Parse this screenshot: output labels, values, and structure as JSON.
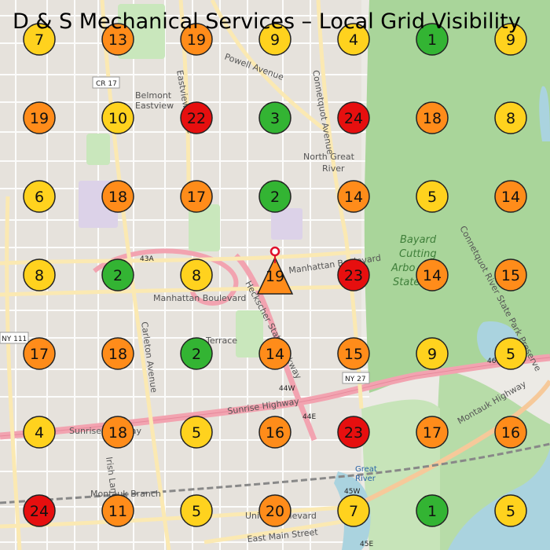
{
  "title": "D & S Mechanical Services – Local Grid Visibility",
  "colors": {
    "green": "#33b433",
    "yellow": "#ffd21e",
    "orange": "#ff8c1a",
    "red": "#e60f0f",
    "marker_outline": "#222222",
    "business_pin": "#e0102a"
  },
  "grid": {
    "rows": 7,
    "cols": 7,
    "ranks": [
      [
        7,
        13,
        19,
        9,
        4,
        1,
        9
      ],
      [
        19,
        10,
        22,
        3,
        24,
        18,
        8
      ],
      [
        6,
        18,
        17,
        2,
        14,
        5,
        14
      ],
      [
        8,
        2,
        8,
        19,
        23,
        14,
        15
      ],
      [
        17,
        18,
        2,
        14,
        15,
        9,
        5
      ],
      [
        4,
        18,
        5,
        16,
        23,
        17,
        16
      ],
      [
        24,
        11,
        5,
        20,
        7,
        1,
        5
      ]
    ],
    "center_marker": {
      "row": 3,
      "col": 3,
      "shape": "triangle",
      "pin_icon": "map-pin-icon"
    }
  },
  "map_labels": {
    "places": [
      "North Great",
      "River",
      "Belmont",
      "Eastview"
    ],
    "parks": [
      "Bayard",
      "Cutting",
      "Arbo",
      "State"
    ],
    "water": [
      "Great",
      "River"
    ],
    "streets": [
      "Eastview Drive",
      "Powell Avenue",
      "Connetquot Avenue",
      "Manhattan Boulevard",
      "Manhattan Boulevard",
      "Heckscher State Parkway",
      "Terrace",
      "Sunrise Highway",
      "Sunrise Highway",
      "Carleton Avenue",
      "Irish Lane",
      "Montauk Branch",
      "Union Boulevard",
      "East Main Street",
      "Montauk Highway",
      "Connetquot River State Park Preserve"
    ],
    "shields": [
      "CR 17",
      "NY 111",
      "NY 27",
      "43A",
      "44W",
      "44E",
      "45W",
      "45E",
      "46"
    ]
  }
}
